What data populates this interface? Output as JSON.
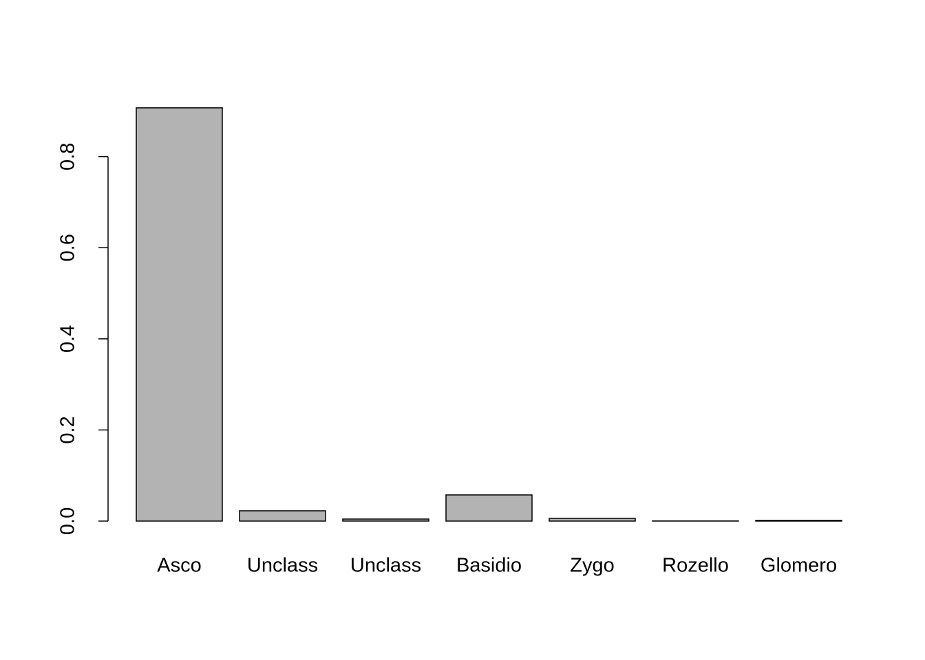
{
  "chart_data": {
    "type": "bar",
    "categories": [
      "Asco",
      "Unclass",
      "Unclass",
      "Basidio",
      "Zygo",
      "Rozello",
      "Glomero"
    ],
    "values": [
      0.907,
      0.0226,
      0.0045,
      0.0574,
      0.006,
      0.0003,
      0.0015
    ],
    "color": "#b3b3b3",
    "ylim": [
      -0.0363,
      0.943
    ],
    "yticks": [
      {
        "value": 0,
        "label": "0.0"
      },
      0.2,
      0.4,
      0.6,
      0.8
    ],
    "grid": false
  }
}
